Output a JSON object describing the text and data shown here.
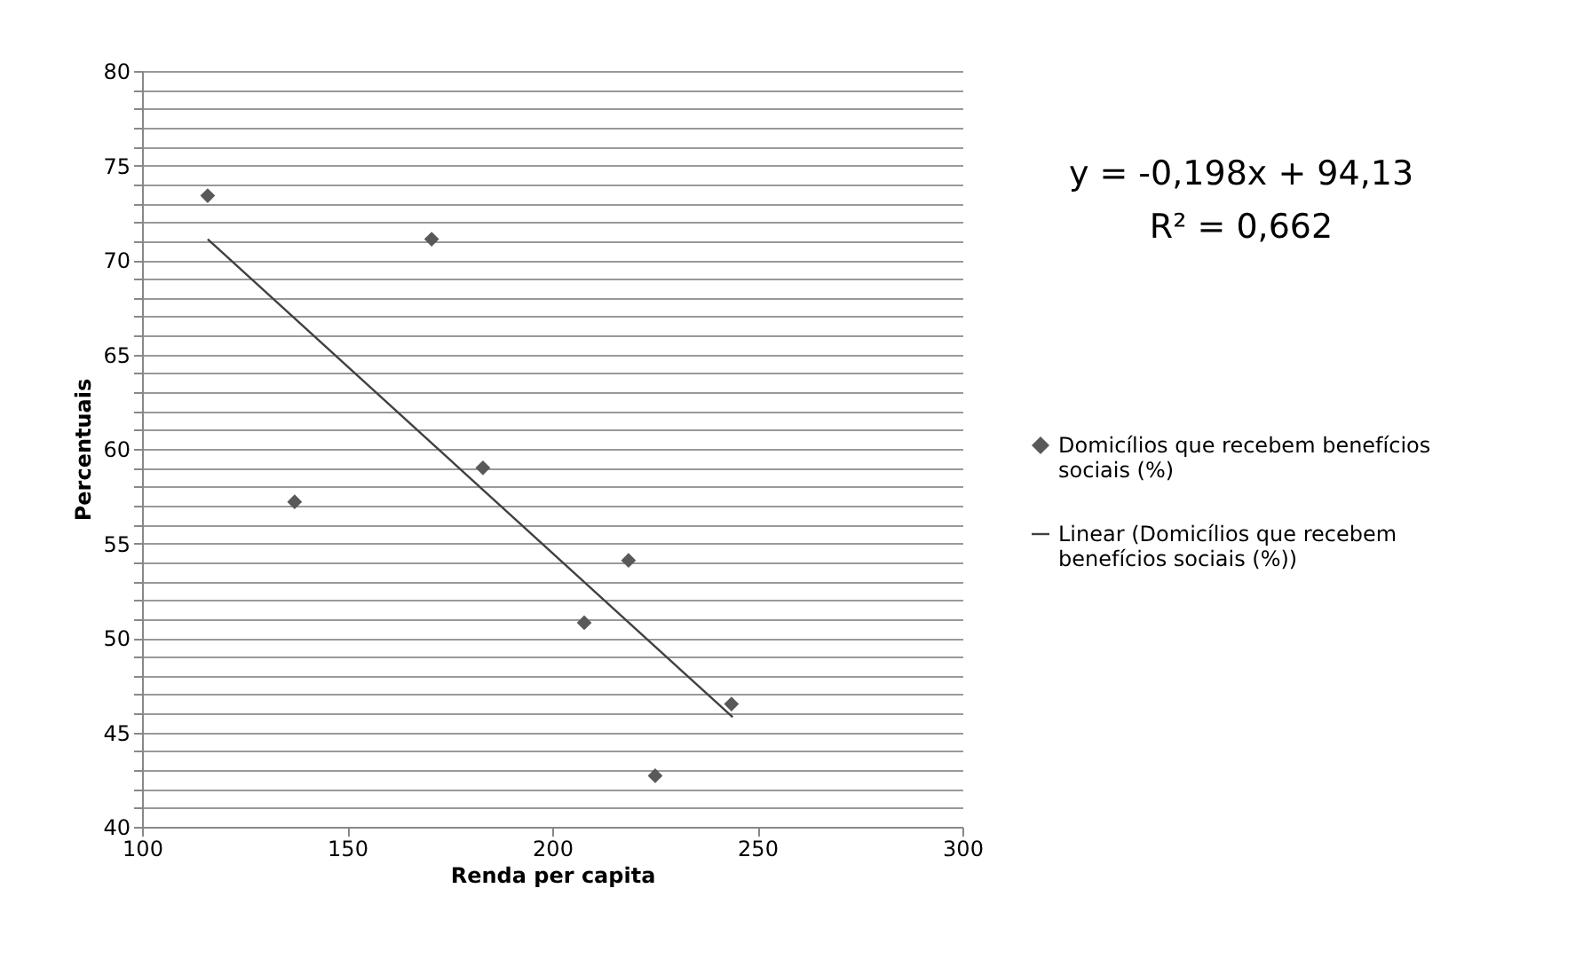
{
  "chart_data": {
    "type": "scatter",
    "xlabel": "Renda per capita",
    "ylabel": "Percentuais",
    "annotations": [
      "y = -0,198x + 94,13",
      "R² = 0,662"
    ],
    "series": [
      {
        "name": "Domicílios que recebem benefícios sociais (%)",
        "color": "#595959",
        "marker": "diamond",
        "x": [
          116.0,
          137.2,
          170.6,
          183.1,
          207.8,
          218.6,
          225.1,
          243.7
        ],
        "values": [
          73.4,
          57.2,
          71.1,
          59.0,
          50.8,
          54.1,
          42.7,
          46.5
        ]
      },
      {
        "name": "Linear (Domicílios que recebem benefícios sociais (%))",
        "type": "line",
        "color": "#404040",
        "marker": "none",
        "line_style": "solid",
        "x": [
          116.0,
          244.0
        ],
        "values": [
          71.1,
          45.8
        ]
      }
    ],
    "xlim": [
      100,
      300
    ],
    "xticks": [
      100,
      150,
      200,
      250,
      300
    ],
    "ylim": [
      40,
      80
    ],
    "yticks": [
      40,
      {
        "value": 41,
        "label": null
      },
      {
        "value": 42,
        "label": null
      },
      {
        "value": 43,
        "label": null
      },
      {
        "value": 44,
        "label": null
      },
      45,
      {
        "value": 46,
        "label": null
      },
      {
        "value": 47,
        "label": null
      },
      {
        "value": 48,
        "label": null
      },
      {
        "value": 49,
        "label": null
      },
      50,
      {
        "value": 51,
        "label": null
      },
      {
        "value": 52,
        "label": null
      },
      {
        "value": 53,
        "label": null
      },
      {
        "value": 54,
        "label": null
      },
      55,
      {
        "value": 56,
        "label": null
      },
      {
        "value": 57,
        "label": null
      },
      {
        "value": 58,
        "label": null
      },
      {
        "value": 59,
        "label": null
      },
      60,
      {
        "value": 61,
        "label": null
      },
      {
        "value": 62,
        "label": null
      },
      {
        "value": 63,
        "label": null
      },
      {
        "value": 64,
        "label": null
      },
      65,
      {
        "value": 66,
        "label": null
      },
      {
        "value": 67,
        "label": null
      },
      {
        "value": 68,
        "label": null
      },
      {
        "value": 69,
        "label": null
      },
      70,
      {
        "value": 71,
        "label": null
      },
      {
        "value": 72,
        "label": null
      },
      {
        "value": 73,
        "label": null
      },
      {
        "value": 74,
        "label": null
      },
      75,
      {
        "value": 76,
        "label": null
      },
      {
        "value": 77,
        "label": null
      },
      {
        "value": 78,
        "label": null
      },
      {
        "value": 79,
        "label": null
      },
      80
    ],
    "grid": "y",
    "legend": "right"
  }
}
